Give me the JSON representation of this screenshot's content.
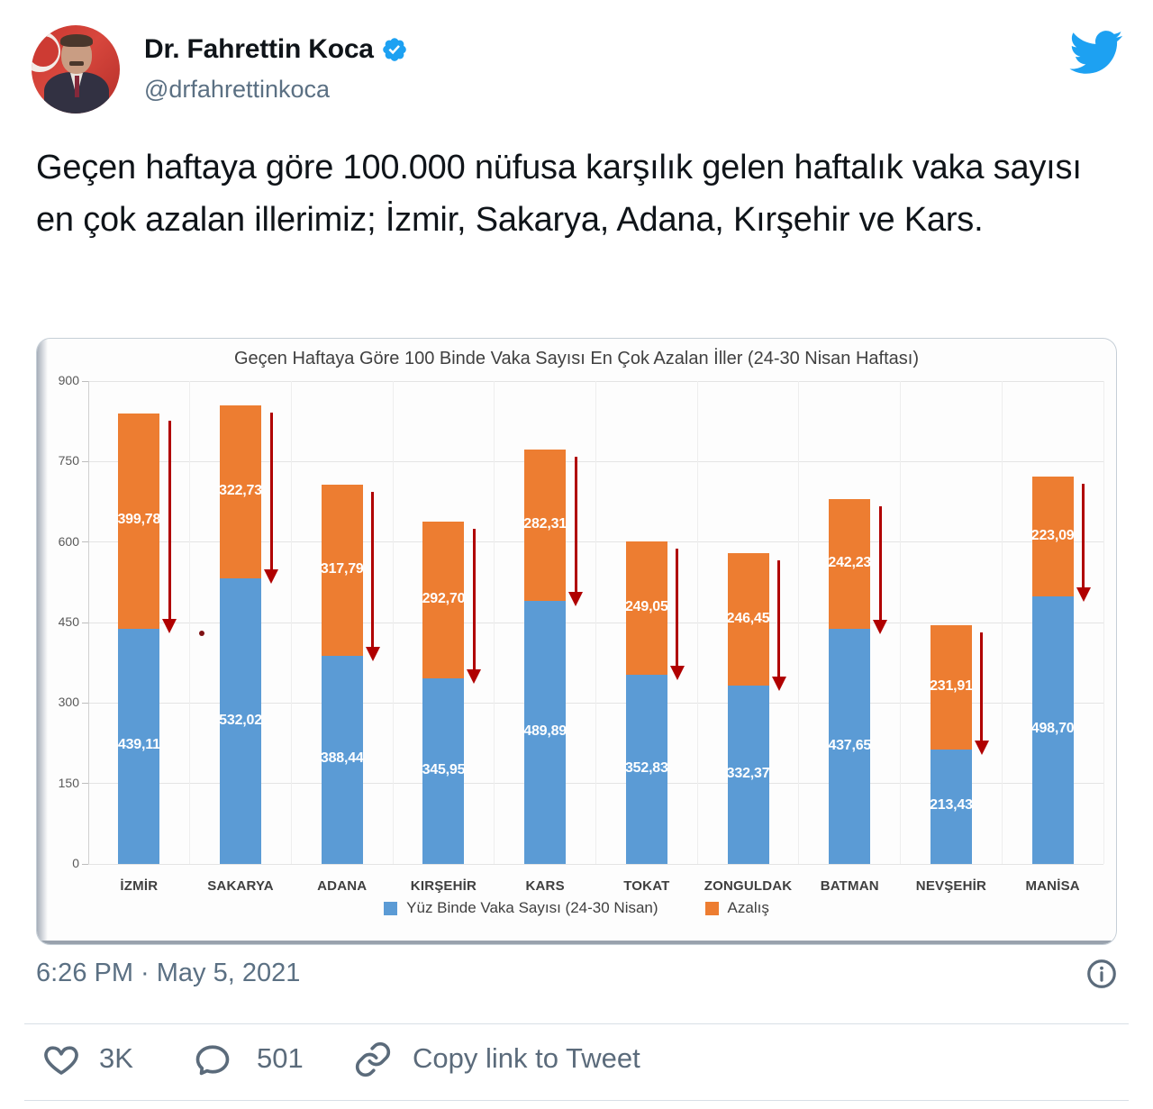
{
  "header": {
    "name": "Dr. Fahrettin Koca",
    "handle": "@drfahrettinkoca",
    "verified": true,
    "brand_color": "#1da1f2"
  },
  "tweet": {
    "text": "Geçen haftaya göre 100.000 nüfusa karşılık gelen haftalık vaka sayısı en çok azalan illerimiz; İzmir, Sakarya, Adana, Kırşehir ve Kars."
  },
  "chart_data": {
    "type": "bar",
    "stacked": true,
    "title": "Geçen Haftaya Göre 100 Binde Vaka Sayısı En Çok Azalan İller (24-30 Nisan Haftası)",
    "categories": [
      "İZMİR",
      "SAKARYA",
      "ADANA",
      "KIRŞEHİR",
      "KARS",
      "TOKAT",
      "ZONGULDAK",
      "BATMAN",
      "NEVŞEHİR",
      "MANİSA"
    ],
    "series": [
      {
        "name": "Yüz Binde Vaka Sayısı (24-30 Nisan)",
        "color": "#5B9BD5",
        "values": [
          439.11,
          532.02,
          388.44,
          345.95,
          489.89,
          352.83,
          332.37,
          437.65,
          213.43,
          498.7
        ],
        "labels": [
          "439,11",
          "532,02",
          "388,44",
          "345,95",
          "489,89",
          "352,83",
          "332,37",
          "437,65",
          "213,43",
          "498,70"
        ]
      },
      {
        "name": "Azalış",
        "color": "#ED7D31",
        "values": [
          399.78,
          322.73,
          317.79,
          292.7,
          282.31,
          249.05,
          246.45,
          242.23,
          231.91,
          223.09
        ],
        "labels": [
          "399,78",
          "322,73",
          "317,79",
          "292,70",
          "282,31",
          "249,05",
          "246,45",
          "242,23",
          "231,91",
          "223,09"
        ]
      }
    ],
    "y_ticks": [
      0,
      150,
      300,
      450,
      600,
      750,
      900
    ],
    "ylim": [
      0,
      900
    ],
    "grid": true,
    "legend_position": "bottom",
    "arrow_color": "#b00000",
    "bar_label_color": "#ffffff"
  },
  "footer": {
    "timestamp": "6:26 PM · May 5, 2021",
    "likes": "3K",
    "replies": "501",
    "copy_link": "Copy link to Tweet"
  }
}
